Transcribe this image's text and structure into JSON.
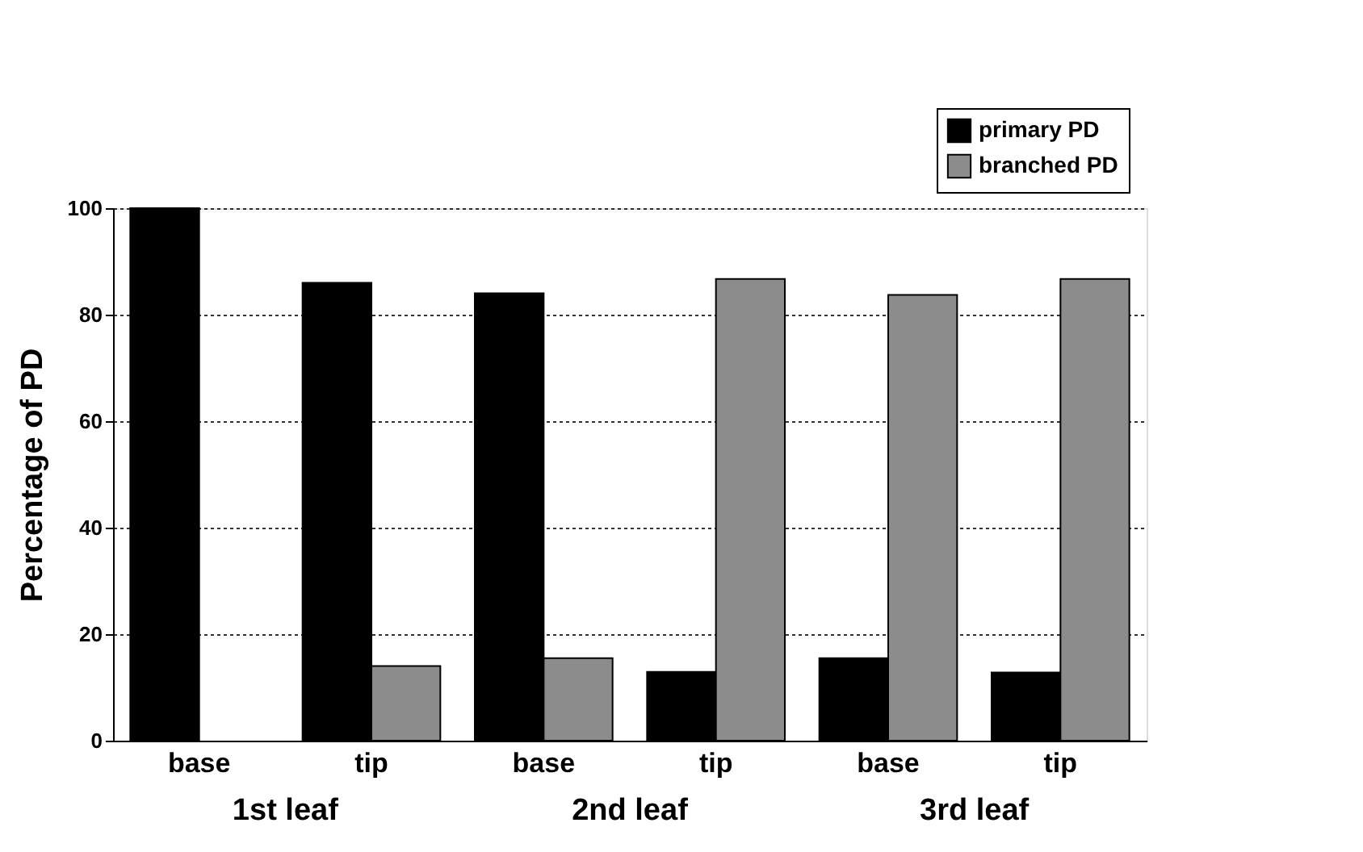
{
  "chart_data": {
    "type": "bar",
    "ylabel": "Percentage of PD",
    "categories": [
      "base",
      "tip",
      "base",
      "tip",
      "base",
      "tip"
    ],
    "annotations": [
      "1st leaf",
      "2nd leaf",
      "3rd leaf"
    ],
    "series": [
      {
        "name": "primary PD",
        "color": "#000000",
        "values": [
          100,
          86,
          84,
          12.9,
          15.5,
          12.8
        ]
      },
      {
        "name": "branched PD",
        "color": "#8c8c8c",
        "values": [
          0,
          14,
          15.5,
          86.7,
          83.7,
          86.7
        ]
      }
    ],
    "ylim": [
      0,
      100
    ],
    "yticks": [
      0,
      20,
      40,
      60,
      80,
      100
    ],
    "grid": "y",
    "legend": "top right"
  }
}
